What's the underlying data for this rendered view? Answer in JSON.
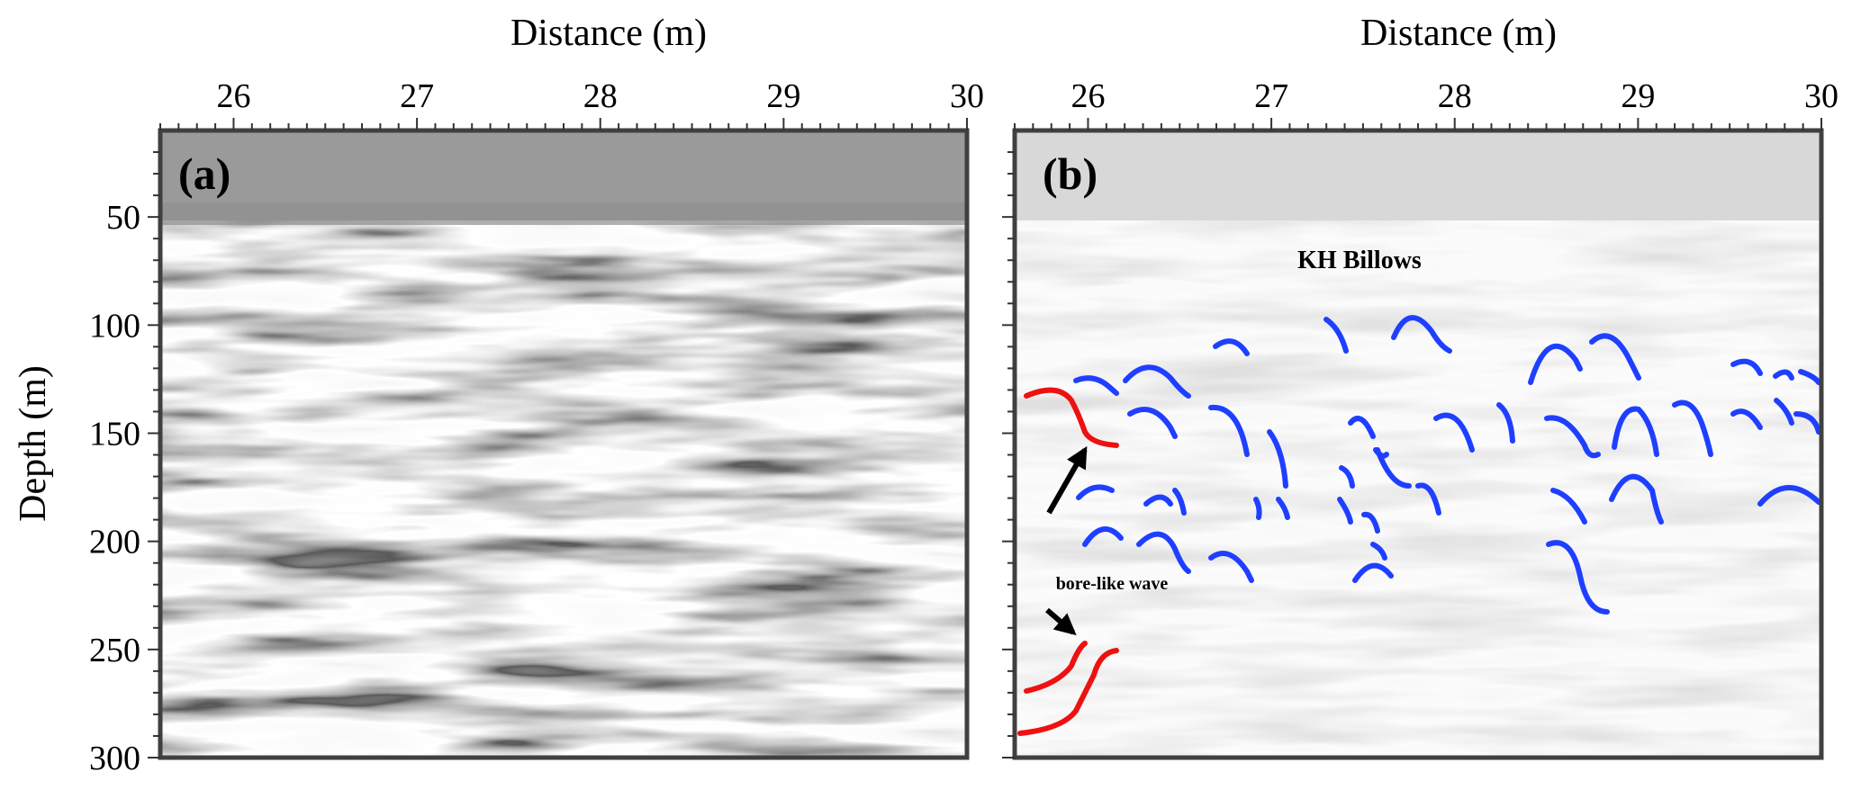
{
  "chart_data": [
    {
      "type": "heatmap",
      "panel_label": "(a)",
      "title": "",
      "xlabel": "Distance (m)",
      "ylabel": "Depth (m)",
      "xlim": [
        25.6,
        30
      ],
      "ylim": [
        300,
        10
      ],
      "x_ticks": [
        26,
        27,
        28,
        29,
        30
      ],
      "y_ticks": [
        50,
        100,
        150,
        200,
        250,
        300
      ],
      "colormap": "grayscale seismic reflection amplitude",
      "content": "Seismic reflection section showing wavy reflectors between ~40 m and ~295 m depth"
    },
    {
      "type": "heatmap",
      "panel_label": "(b)",
      "title": "",
      "xlabel": "Distance (m)",
      "ylabel": "",
      "xlim": [
        25.6,
        30
      ],
      "ylim": [
        300,
        10
      ],
      "x_ticks": [
        26,
        27,
        28,
        29,
        30
      ],
      "y_ticks": [
        50,
        100,
        150,
        200,
        250,
        300
      ],
      "colormap": "lightened grayscale seismic reflection amplitude",
      "annotations": [
        {
          "text": "KH Billows",
          "color": "#000000",
          "x": 28.15,
          "y": 62
        },
        {
          "text": "bore-like wave",
          "color": "#000000",
          "x": 26.07,
          "y": 215
        }
      ],
      "interpretation_colors": {
        "kh_billows": "#1f3fff",
        "bore_like_wave": "#ee1111",
        "arrows": "#000000"
      }
    }
  ]
}
